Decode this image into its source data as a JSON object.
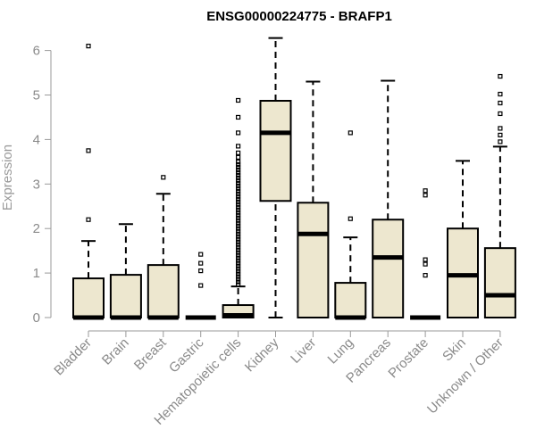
{
  "chart_data": {
    "type": "box",
    "title": "ENSG00000224775 - BRAFP1",
    "ylabel": "Expression",
    "xlabel": "",
    "ylim": [
      0,
      6.3
    ],
    "yticks": [
      0,
      1,
      2,
      3,
      4,
      5,
      6
    ],
    "grid": false,
    "colors": {
      "box_fill": "#ede7cf",
      "stroke": "#000000",
      "axis": "#9a9a9a",
      "tick_text": "#8a8a8a"
    },
    "categories": [
      "Bladder",
      "Brain",
      "Breast",
      "Gastric",
      "Hematopoietic cells",
      "Kidney",
      "Liver",
      "Lung",
      "Pancreas",
      "Prostate",
      "Skin",
      "Unknown / Other"
    ],
    "boxes": [
      {
        "q1": 0,
        "median": 0,
        "q3": 0.88,
        "whisker_low": 0,
        "whisker_high": 1.72,
        "outliers": [
          2.2,
          3.75,
          6.1
        ]
      },
      {
        "q1": 0,
        "median": 0,
        "q3": 0.96,
        "whisker_low": 0,
        "whisker_high": 2.1,
        "outliers": []
      },
      {
        "q1": 0,
        "median": 0,
        "q3": 1.18,
        "whisker_low": 0,
        "whisker_high": 2.78,
        "outliers": [
          3.15
        ]
      },
      {
        "q1": 0,
        "median": 0,
        "q3": 0,
        "whisker_low": 0,
        "whisker_high": 0,
        "outliers": [
          0.72,
          1.05,
          1.22,
          1.42
        ]
      },
      {
        "q1": 0,
        "median": 0.05,
        "q3": 0.28,
        "whisker_low": 0,
        "whisker_high": 0.7,
        "outliers": [
          0.74,
          0.8,
          0.86,
          0.92,
          0.98,
          1.04,
          1.1,
          1.16,
          1.22,
          1.28,
          1.34,
          1.4,
          1.46,
          1.52,
          1.58,
          1.64,
          1.7,
          1.76,
          1.82,
          1.88,
          1.94,
          2.0,
          2.06,
          2.12,
          2.18,
          2.24,
          2.3,
          2.36,
          2.42,
          2.48,
          2.54,
          2.6,
          2.66,
          2.72,
          2.78,
          2.84,
          2.9,
          2.96,
          3.02,
          3.08,
          3.14,
          3.2,
          3.26,
          3.32,
          3.38,
          3.44,
          3.5,
          3.6,
          3.7,
          3.85,
          4.15,
          4.5,
          4.88
        ]
      },
      {
        "q1": 2.62,
        "median": 4.15,
        "q3": 4.87,
        "whisker_low": 0,
        "whisker_high": 6.28,
        "outliers": []
      },
      {
        "q1": 0,
        "median": 1.88,
        "q3": 2.58,
        "whisker_low": 0,
        "whisker_high": 5.3,
        "outliers": []
      },
      {
        "q1": 0,
        "median": 0,
        "q3": 0.78,
        "whisker_low": 0,
        "whisker_high": 1.8,
        "outliers": [
          2.22,
          4.15
        ]
      },
      {
        "q1": 0,
        "median": 1.35,
        "q3": 2.2,
        "whisker_low": 0,
        "whisker_high": 5.32,
        "outliers": []
      },
      {
        "q1": 0,
        "median": 0,
        "q3": 0,
        "whisker_low": 0,
        "whisker_high": 0,
        "outliers": [
          0.95,
          1.2,
          1.3,
          2.75,
          2.85
        ]
      },
      {
        "q1": 0,
        "median": 0.95,
        "q3": 2.0,
        "whisker_low": 0,
        "whisker_high": 3.52,
        "outliers": []
      },
      {
        "q1": 0,
        "median": 0.5,
        "q3": 1.56,
        "whisker_low": 0,
        "whisker_high": 3.84,
        "outliers": [
          3.95,
          4.1,
          4.25,
          4.58,
          4.82,
          5.02,
          5.42
        ]
      }
    ]
  }
}
